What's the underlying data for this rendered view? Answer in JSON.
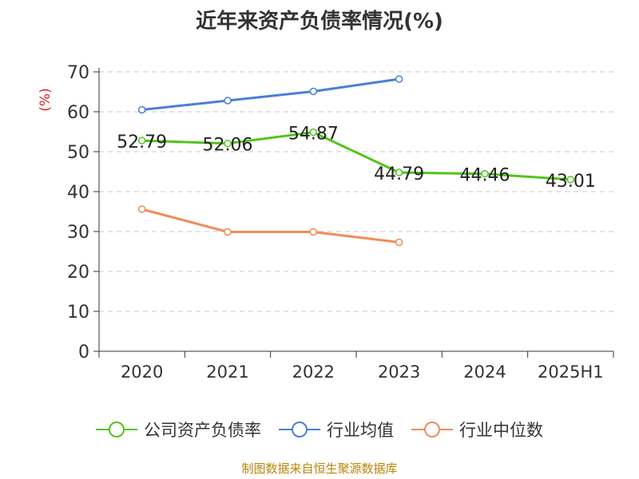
{
  "chart_data": {
    "type": "line",
    "title": "近年来资产负债率情况(%)",
    "ylabel": "(%)",
    "xlabel": "",
    "categories": [
      "2020",
      "2021",
      "2022",
      "2023",
      "2024",
      "2025H1"
    ],
    "ylim": [
      0,
      70
    ],
    "yticks": [
      0,
      10,
      20,
      30,
      40,
      50,
      60,
      70
    ],
    "grid": true,
    "legend_position": "bottom",
    "series": [
      {
        "name": "公司资产负债率",
        "color": "#52c41a",
        "values": [
          52.79,
          52.06,
          54.87,
          44.79,
          44.46,
          43.01
        ],
        "labels": [
          "52.79",
          "52.06",
          "54.87",
          "44.79",
          "44.46",
          "43.01"
        ]
      },
      {
        "name": "行业均值",
        "color": "#4a7fd8",
        "values": [
          60.5,
          62.8,
          65.1,
          68.2,
          null,
          null
        ]
      },
      {
        "name": "行业中位数",
        "color": "#f08c5a",
        "values": [
          35.6,
          29.9,
          29.9,
          27.3,
          null,
          null
        ]
      }
    ]
  },
  "footer": "制图数据来自恒生聚源数据库"
}
